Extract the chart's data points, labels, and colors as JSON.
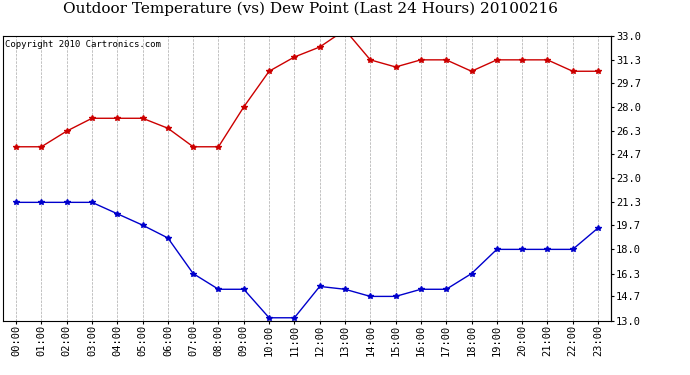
{
  "title": "Outdoor Temperature (vs) Dew Point (Last 24 Hours) 20100216",
  "copyright_text": "Copyright 2010 Cartronics.com",
  "x_labels": [
    "00:00",
    "01:00",
    "02:00",
    "03:00",
    "04:00",
    "05:00",
    "06:00",
    "07:00",
    "08:00",
    "09:00",
    "10:00",
    "11:00",
    "12:00",
    "13:00",
    "14:00",
    "15:00",
    "16:00",
    "17:00",
    "18:00",
    "19:00",
    "20:00",
    "21:00",
    "22:00",
    "23:00"
  ],
  "temp_data": [
    25.2,
    25.2,
    26.3,
    27.2,
    27.2,
    27.2,
    26.5,
    25.2,
    25.2,
    28.0,
    30.5,
    31.5,
    32.2,
    33.4,
    31.3,
    30.8,
    31.3,
    31.3,
    30.5,
    31.3,
    31.3,
    31.3,
    30.5,
    30.5
  ],
  "dew_data": [
    21.3,
    21.3,
    21.3,
    21.3,
    20.5,
    19.7,
    18.8,
    16.3,
    15.2,
    15.2,
    13.2,
    13.2,
    15.4,
    15.2,
    14.7,
    14.7,
    15.2,
    15.2,
    16.3,
    18.0,
    18.0,
    18.0,
    18.0,
    19.5
  ],
  "temp_color": "#cc0000",
  "dew_color": "#0000cc",
  "bg_color": "#ffffff",
  "plot_bg_color": "#ffffff",
  "grid_color": "#aaaaaa",
  "y_right_ticks": [
    13.0,
    14.7,
    16.3,
    18.0,
    19.7,
    21.3,
    23.0,
    24.7,
    26.3,
    28.0,
    29.7,
    31.3,
    33.0
  ],
  "ylim": [
    13.0,
    33.0
  ],
  "title_fontsize": 11,
  "tick_fontsize": 7.5,
  "copyright_fontsize": 6.5
}
